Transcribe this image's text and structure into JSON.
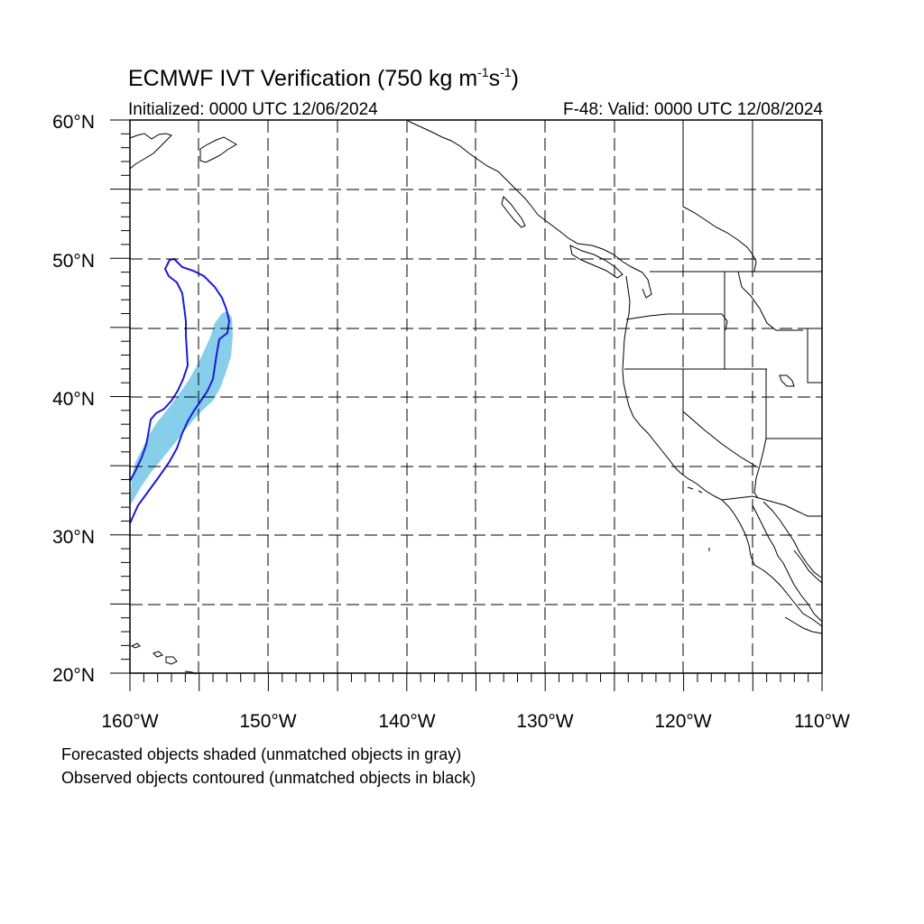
{
  "title": {
    "main": "ECMWF IVT Verification (750 kg m",
    "sup1": "-1",
    "mid": "s",
    "sup2": "-1",
    "end": ")"
  },
  "init_label": "Initialized: 0000 UTC 12/06/2024",
  "valid_label": "F-48: Valid: 0000 UTC 12/08/2024",
  "map": {
    "projection": "cylindrical-equidistant",
    "lon_range": [
      -160,
      -110
    ],
    "lat_range": [
      20,
      60
    ],
    "grid_lon_step": 5,
    "grid_lat_step": 5,
    "lat_labels": [
      "20°N",
      "30°N",
      "40°N",
      "50°N",
      "60°N"
    ],
    "lon_labels": [
      "160°W",
      "150°W",
      "140°W",
      "130°W",
      "120°W",
      "110°W"
    ],
    "forecast_fill_color": "#87ceeb",
    "observed_contour_color": "#1a1adc",
    "coast_color": "#000000"
  },
  "legend": {
    "line1": "Forecasted objects shaded (unmatched objects in gray)",
    "line2": "Observed objects contoured (unmatched objects in black)"
  }
}
